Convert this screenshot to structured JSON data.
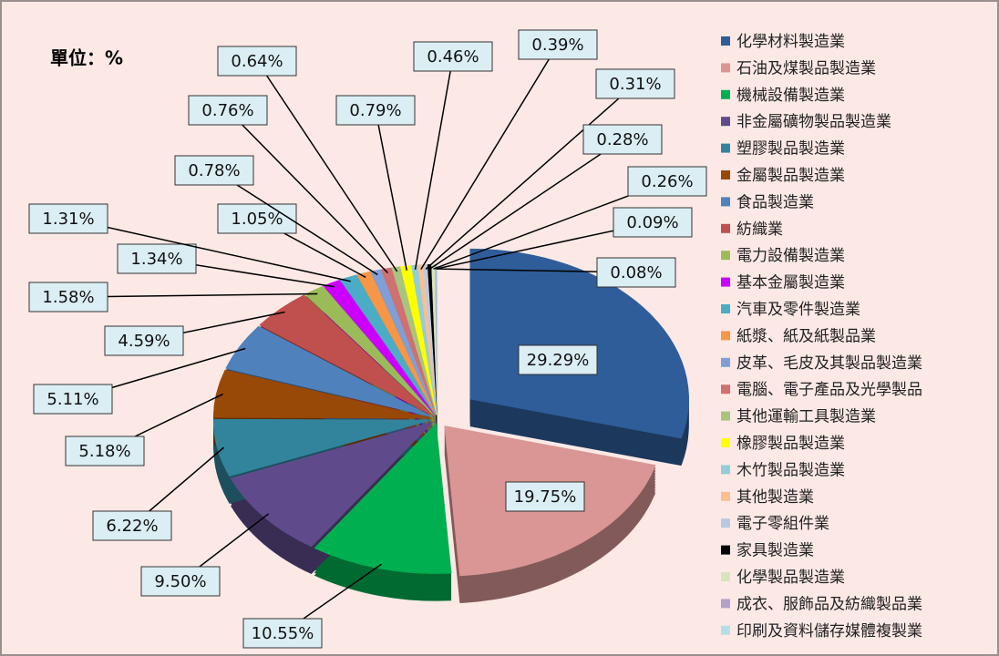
{
  "chart_data": {
    "type": "pie",
    "title": "單位：%",
    "categories": [
      "化學材料製造業",
      "石油及煤製品製造業",
      "機械設備製造業",
      "非金屬礦物製品製造業",
      "塑膠製品製造業",
      "金屬製品製造業",
      "食品製造業",
      "紡織業",
      "電力設備製造業",
      "基本金屬製造業",
      "汽車及零件製造業",
      "紙漿、紙及紙製品業",
      "皮革、毛皮及其製品製造業",
      "電腦、電子產品及光學製品",
      "其他運輸工具製造業",
      "橡膠製品製造業",
      "木竹製品製造業",
      "其他製造業",
      "電子零組件業",
      "家具製造業",
      "化學製品製造業",
      "成衣、服飾品及紡織製品業",
      "印刷及資料儲存媒體複製業"
    ],
    "values": [
      29.29,
      19.75,
      10.55,
      9.5,
      6.22,
      5.18,
      5.11,
      4.59,
      1.58,
      1.34,
      1.31,
      1.05,
      0.78,
      0.76,
      0.64,
      0.79,
      0.46,
      0.39,
      0.31,
      0.28,
      0.26,
      0.09,
      0.08
    ],
    "value_labels": [
      "29.29%",
      "19.75%",
      "10.55%",
      "9.50%",
      "6.22%",
      "5.18%",
      "5.11%",
      "4.59%",
      "1.58%",
      "1.34%",
      "1.31%",
      "1.05%",
      "0.78%",
      "0.76%",
      "0.64%",
      "0.79%",
      "0.46%",
      "0.39%",
      "0.31%",
      "0.28%",
      "0.26%",
      "0.09%",
      "0.08%"
    ],
    "colors": [
      "#2e5d9a",
      "#d99694",
      "#00b050",
      "#5f4b8b",
      "#31849b",
      "#984807",
      "#4f81bd",
      "#c0504d",
      "#9bbb59",
      "#cc00ff",
      "#4bacc6",
      "#f79646",
      "#7f9fd6",
      "#d07070",
      "#a9c47f",
      "#ffff00",
      "#93cddd",
      "#fabf8f",
      "#b9c9e3",
      "#000000",
      "#d7e4bd",
      "#b3a2c7",
      "#b7dee8"
    ],
    "legend": "right"
  }
}
